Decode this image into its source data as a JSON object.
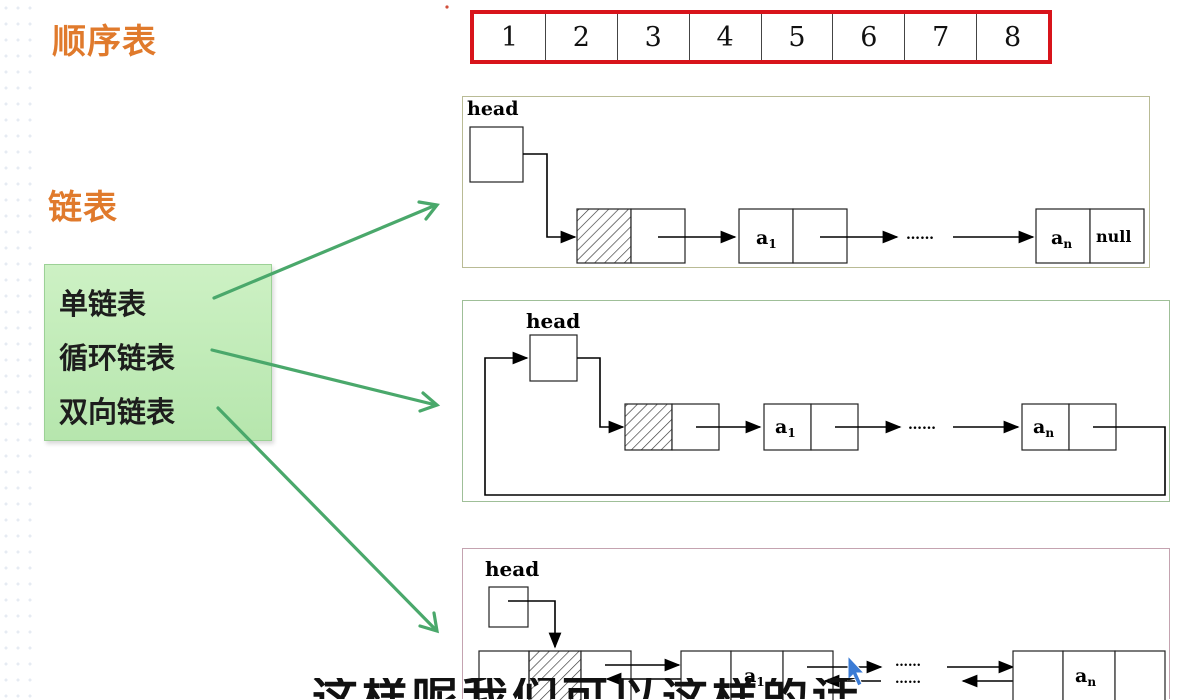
{
  "labels": {
    "sequential": "顺序表",
    "linked": "链表"
  },
  "array_cells": [
    "1",
    "2",
    "3",
    "4",
    "5",
    "6",
    "7",
    "8"
  ],
  "list_types": [
    "单链表",
    "循环链表",
    "双向链表"
  ],
  "singly": {
    "head": "head",
    "a1": "a",
    "a1_sub": "1",
    "an": "a",
    "an_sub": "n",
    "null_label": "null",
    "dots": "……"
  },
  "circular": {
    "head": "head",
    "a1": "a",
    "a1_sub": "1",
    "an": "a",
    "an_sub": "n",
    "dots": "……"
  },
  "doubly": {
    "head": "head",
    "a1": "a",
    "a1_sub": "1",
    "an": "a",
    "an_sub": "n",
    "dots": "……"
  },
  "subtitle_fragment": "这样呢我们可以这样的话",
  "colors": {
    "accent_orange": "#e07a2c",
    "array_border": "#d8141b",
    "arrow_green": "#4aa86b"
  }
}
